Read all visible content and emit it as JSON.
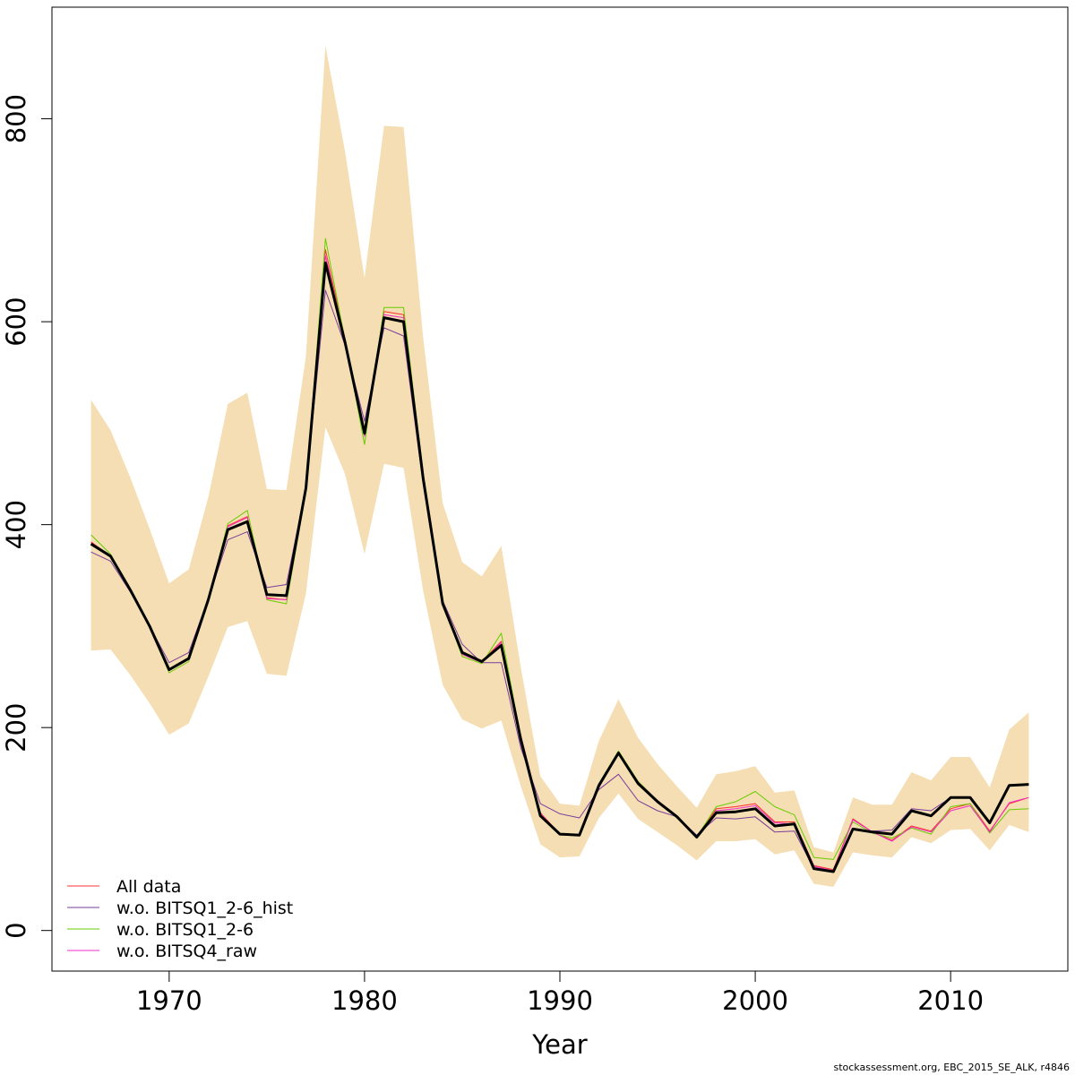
{
  "chart_data": {
    "type": "line",
    "title": "",
    "xlabel": "Year",
    "ylabel": "",
    "xlim": [
      1964,
      2016
    ],
    "ylim": [
      -40,
      910
    ],
    "xticks": [
      1970,
      1980,
      1990,
      2000,
      2010
    ],
    "yticks": [
      0,
      200,
      400,
      600,
      800
    ],
    "grid": false,
    "legend_position": "bottom-left",
    "x": [
      1966,
      1967,
      1968,
      1969,
      1970,
      1971,
      1972,
      1973,
      1974,
      1975,
      1976,
      1977,
      1978,
      1979,
      1980,
      1981,
      1982,
      1983,
      1984,
      1985,
      1986,
      1987,
      1988,
      1989,
      1990,
      1991,
      1992,
      1993,
      1994,
      1995,
      1996,
      1997,
      1998,
      1999,
      2000,
      2001,
      2002,
      2003,
      2004,
      2005,
      2006,
      2007,
      2008,
      2009,
      2010,
      2011,
      2012,
      2013,
      2014
    ],
    "band": {
      "color": "#f5deb3",
      "upper": [
        523,
        493,
        447,
        396,
        342,
        356,
        427,
        519,
        530,
        435,
        434,
        566,
        872,
        768,
        643,
        793,
        792,
        585,
        421,
        363,
        349,
        379,
        259,
        152,
        125,
        123,
        187,
        228,
        190,
        164,
        142,
        121,
        154,
        157,
        162,
        136,
        138,
        82,
        77,
        131,
        124,
        124,
        156,
        148,
        171,
        171,
        141,
        198,
        215
      ],
      "lower": [
        276,
        277,
        252,
        224,
        193,
        204,
        250,
        299,
        305,
        253,
        251,
        332,
        496,
        450,
        371,
        460,
        456,
        335,
        242,
        208,
        199,
        207,
        142,
        85,
        72,
        73,
        111,
        135,
        110,
        97,
        84,
        69,
        88,
        88,
        90,
        75,
        79,
        46,
        43,
        77,
        74,
        72,
        92,
        86,
        99,
        100,
        79,
        104,
        97
      ]
    },
    "series": [
      {
        "name": "All data",
        "color": "#ff3030",
        "width": 1,
        "values": [
          383,
          369,
          337,
          300,
          258,
          269,
          327,
          399,
          408,
          328,
          326,
          437,
          671,
          583,
          491,
          610,
          607,
          447,
          322,
          273,
          265,
          285,
          192,
          116,
          95,
          95,
          141,
          176,
          147,
          128,
          113,
          92,
          120,
          122,
          125,
          107,
          107,
          64,
          60,
          110,
          97,
          89,
          103,
          98,
          120,
          125,
          98,
          125,
          131
        ]
      },
      {
        "name": "w.o. BITSQ1_2-6_hist",
        "color": "#7a3d9b",
        "width": 1,
        "values": [
          373,
          364,
          334,
          300,
          264,
          274,
          327,
          385,
          393,
          338,
          341,
          437,
          631,
          577,
          502,
          594,
          586,
          440,
          325,
          282,
          264,
          264,
          180,
          125,
          115,
          111,
          139,
          154,
          128,
          118,
          112,
          94,
          111,
          110,
          112,
          97,
          98,
          61,
          58,
          100,
          98,
          99,
          120,
          118,
          131,
          131,
          107,
          143,
          144
        ]
      },
      {
        "name": "w.o. BITSQ1_2-6",
        "color": "#66cc00",
        "width": 1,
        "values": [
          390,
          371,
          336,
          299,
          254,
          265,
          326,
          401,
          414,
          326,
          322,
          433,
          682,
          582,
          479,
          614,
          614,
          450,
          322,
          270,
          263,
          293,
          190,
          112,
          95,
          94,
          145,
          177,
          147,
          128,
          113,
          92,
          122,
          127,
          137,
          122,
          114,
          72,
          70,
          107,
          96,
          91,
          101,
          95,
          122,
          125,
          96,
          119,
          120
        ]
      },
      {
        "name": "w.o. BITSQ4_raw",
        "color": "#ee2ec8",
        "width": 1,
        "values": [
          382,
          369,
          336,
          300,
          257,
          269,
          327,
          398,
          407,
          327,
          326,
          435,
          665,
          582,
          487,
          607,
          604,
          445,
          321,
          272,
          264,
          284,
          192,
          115,
          95,
          94,
          141,
          175,
          146,
          128,
          113,
          91,
          118,
          120,
          123,
          106,
          105,
          63,
          59,
          109,
          97,
          88,
          102,
          97,
          118,
          123,
          97,
          126,
          131
        ]
      },
      {
        "name": "",
        "color": "#000000",
        "width": 3,
        "values": [
          381,
          369,
          336,
          300,
          257,
          268,
          326,
          395,
          403,
          331,
          330,
          436,
          658,
          580,
          490,
          604,
          600,
          446,
          322,
          274,
          265,
          281,
          188,
          113,
          95,
          94,
          143,
          175,
          145,
          127,
          112,
          92,
          116,
          117,
          120,
          103,
          105,
          61,
          58,
          100,
          97,
          95,
          118,
          113,
          131,
          131,
          106,
          143,
          144
        ]
      }
    ],
    "footer": "stockassessment.org, EBC_2015_SE_ALK, r4846"
  }
}
